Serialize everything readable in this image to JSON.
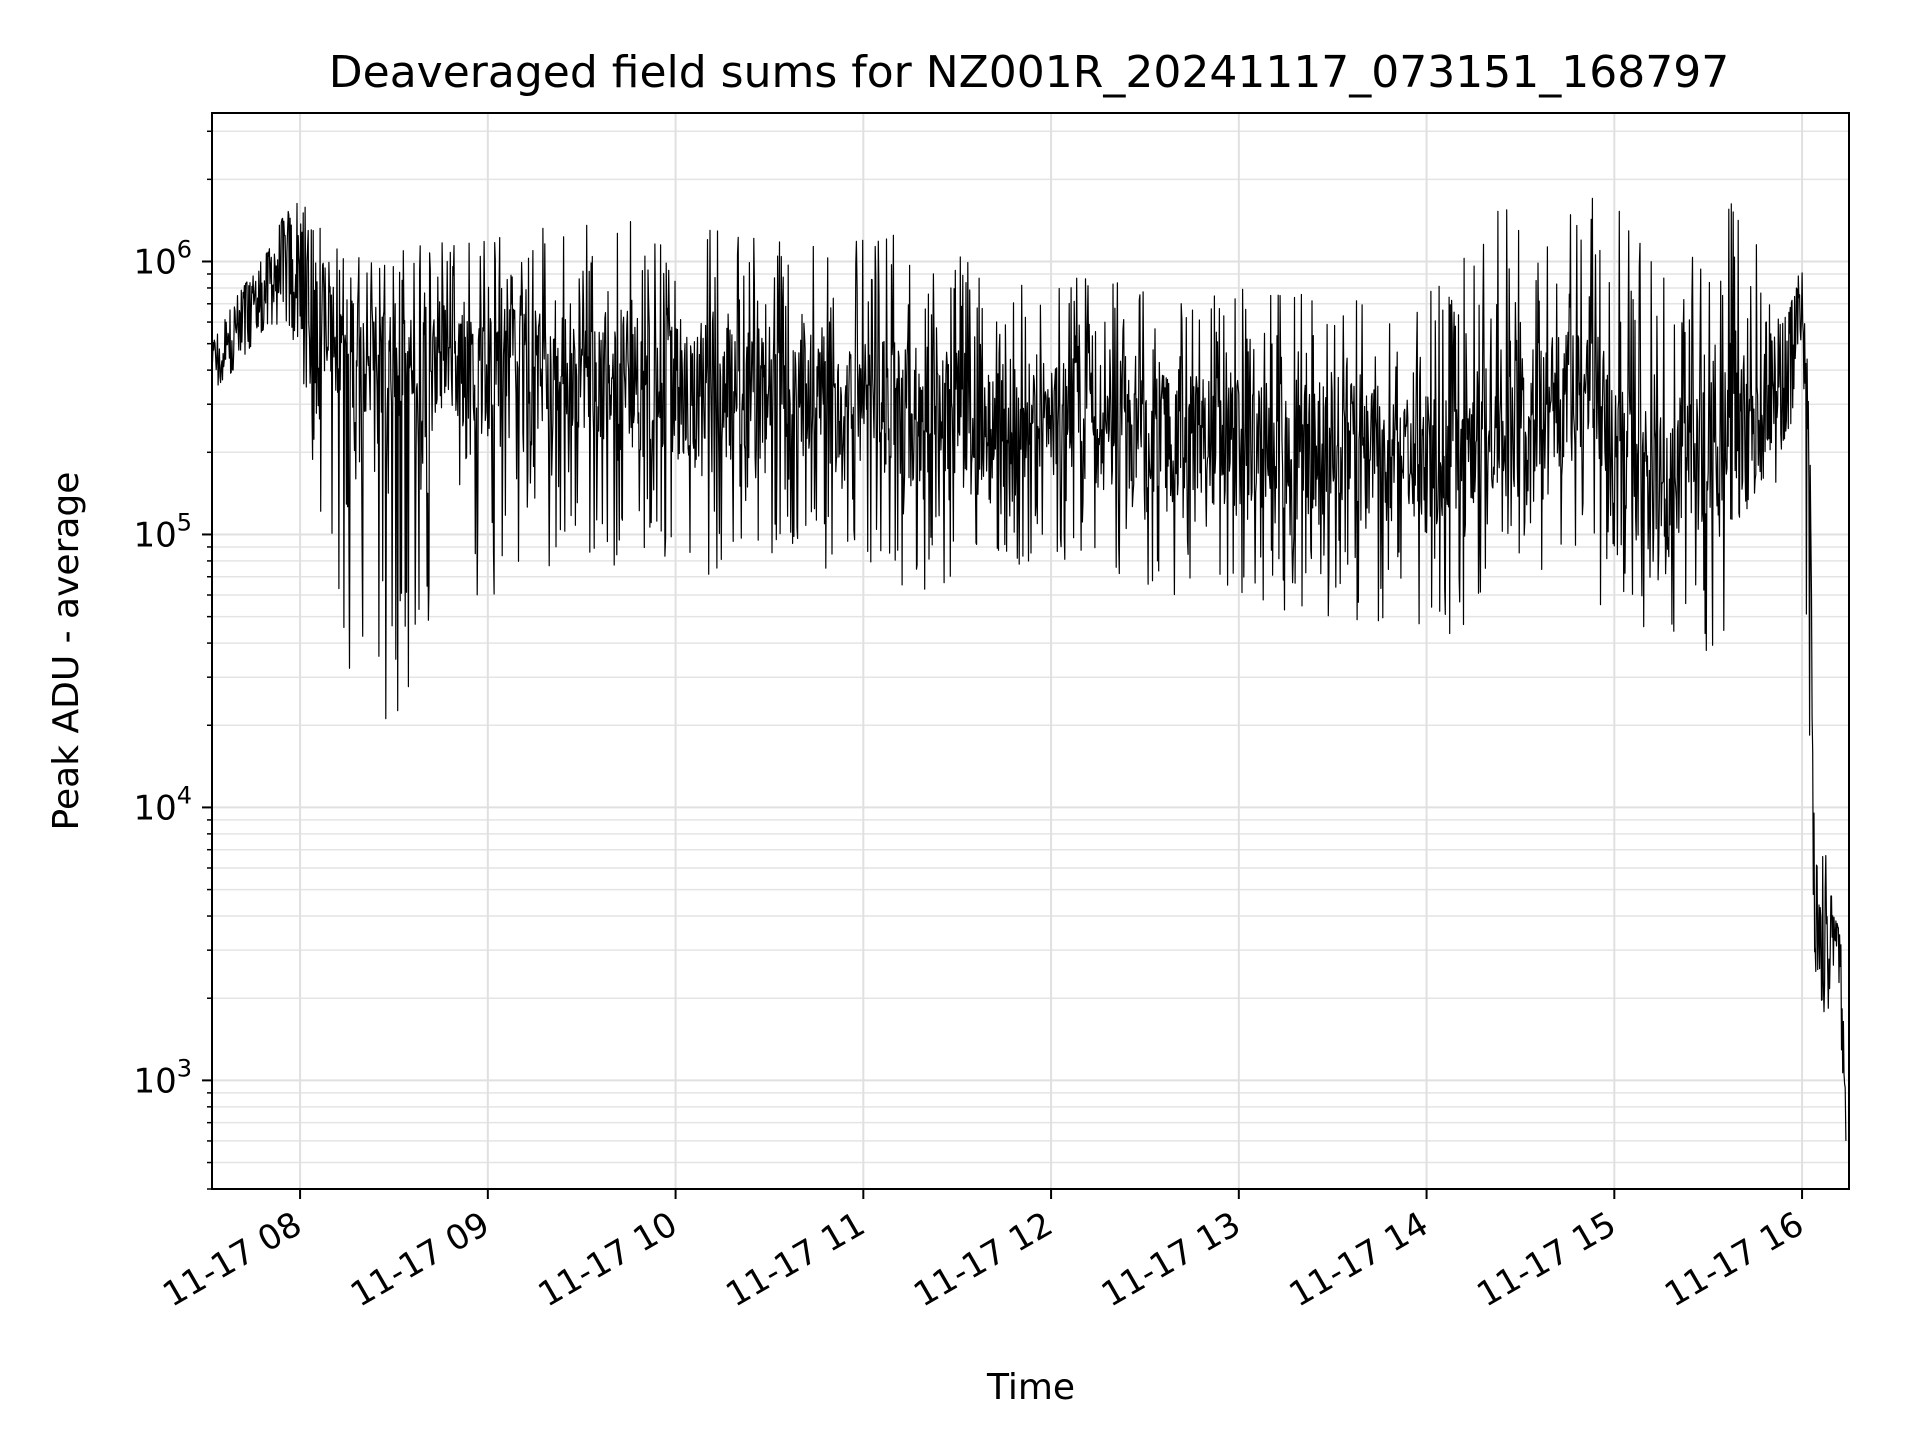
{
  "chart_data": {
    "type": "line",
    "title": "Deaveraged field sums for NZ001R_20241117_073151_168797",
    "xlabel": "Time",
    "ylabel": "Peak ADU - average",
    "yscale": "log",
    "ylim": [
      400,
      3500000
    ],
    "xlim": [
      "2024-11-17 07:31:51",
      "2024-11-17 16:15:00"
    ],
    "grid": true,
    "legend": "none",
    "line_color": "#000000",
    "x_ticks": [
      {
        "label": "11-17 08",
        "time": "2024-11-17 08:00"
      },
      {
        "label": "11-17 09",
        "time": "2024-11-17 09:00"
      },
      {
        "label": "11-17 10",
        "time": "2024-11-17 10:00"
      },
      {
        "label": "11-17 11",
        "time": "2024-11-17 11:00"
      },
      {
        "label": "11-17 12",
        "time": "2024-11-17 12:00"
      },
      {
        "label": "11-17 13",
        "time": "2024-11-17 13:00"
      },
      {
        "label": "11-17 14",
        "time": "2024-11-17 14:00"
      },
      {
        "label": "11-17 15",
        "time": "2024-11-17 15:00"
      },
      {
        "label": "11-17 16",
        "time": "2024-11-17 16:00"
      }
    ],
    "y_ticks": [
      {
        "base": "10",
        "exp": "3",
        "value": 1000
      },
      {
        "base": "10",
        "exp": "4",
        "value": 10000
      },
      {
        "base": "10",
        "exp": "5",
        "value": 100000
      },
      {
        "base": "10",
        "exp": "6",
        "value": 1000000
      }
    ],
    "series": [
      {
        "x": [
          "2024-11-17 07:32",
          "2024-11-17 07:40",
          "2024-11-17 07:50",
          "2024-11-17 07:55",
          "2024-11-17 08:00",
          "2024-11-17 08:05",
          "2024-11-17 08:10",
          "2024-11-17 08:15",
          "2024-11-17 08:20",
          "2024-11-17 08:25",
          "2024-11-17 08:30",
          "2024-11-17 08:35",
          "2024-11-17 08:40",
          "2024-11-17 08:45",
          "2024-11-17 08:50",
          "2024-11-17 08:55",
          "2024-11-17 09:00",
          "2024-11-17 09:10",
          "2024-11-17 09:20",
          "2024-11-17 09:30",
          "2024-11-17 09:40",
          "2024-11-17 09:50",
          "2024-11-17 10:00",
          "2024-11-17 10:10",
          "2024-11-17 10:20",
          "2024-11-17 10:30",
          "2024-11-17 10:40",
          "2024-11-17 10:50",
          "2024-11-17 11:00",
          "2024-11-17 11:10",
          "2024-11-17 11:15",
          "2024-11-17 11:20",
          "2024-11-17 11:30",
          "2024-11-17 11:40",
          "2024-11-17 11:50",
          "2024-11-17 12:00",
          "2024-11-17 12:10",
          "2024-11-17 12:20",
          "2024-11-17 12:30",
          "2024-11-17 12:40",
          "2024-11-17 12:50",
          "2024-11-17 13:00",
          "2024-11-17 13:10",
          "2024-11-17 13:20",
          "2024-11-17 13:30",
          "2024-11-17 13:40",
          "2024-11-17 13:50",
          "2024-11-17 14:00",
          "2024-11-17 14:10",
          "2024-11-17 14:20",
          "2024-11-17 14:30",
          "2024-11-17 14:40",
          "2024-11-17 14:50",
          "2024-11-17 14:55",
          "2024-11-17 15:00",
          "2024-11-17 15:10",
          "2024-11-17 15:20",
          "2024-11-17 15:30",
          "2024-11-17 15:35",
          "2024-11-17 15:40",
          "2024-11-17 15:50",
          "2024-11-17 15:55",
          "2024-11-17 16:00",
          "2024-11-17 16:02",
          "2024-11-17 16:04",
          "2024-11-17 16:06",
          "2024-11-17 16:08",
          "2024-11-17 16:10",
          "2024-11-17 16:12",
          "2024-11-17 16:14"
        ],
        "y": [
          400000,
          550000,
          800000,
          900000,
          900000,
          700000,
          600000,
          500000,
          450000,
          420000,
          400000,
          380000,
          400000,
          420000,
          450000,
          450000,
          400000,
          380000,
          400000,
          420000,
          380000,
          360000,
          350000,
          340000,
          330000,
          320000,
          300000,
          310000,
          300000,
          300000,
          270000,
          280000,
          270000,
          260000,
          250000,
          250000,
          250000,
          240000,
          230000,
          230000,
          220000,
          220000,
          210000,
          200000,
          200000,
          200000,
          190000,
          180000,
          200000,
          250000,
          280000,
          300000,
          350000,
          300000,
          220000,
          180000,
          170000,
          200000,
          230000,
          250000,
          280000,
          400000,
          750000,
          300000,
          4000,
          3000,
          2500,
          3500,
          3000,
          600
        ],
        "min_envelope": [
          320000,
          420000,
          600000,
          550000,
          400000,
          100000,
          40000,
          30000,
          25000,
          22000,
          20000,
          22000,
          30000,
          45000,
          50000,
          55000,
          55000,
          60000,
          70000,
          80000,
          75000,
          75000,
          70000,
          70000,
          75000,
          80000,
          75000,
          70000,
          80000,
          75000,
          45000,
          60000,
          70000,
          80000,
          75000,
          80000,
          70000,
          65000,
          60000,
          60000,
          60000,
          55000,
          55000,
          50000,
          50000,
          45000,
          45000,
          40000,
          40000,
          60000,
          80000,
          70000,
          60000,
          50000,
          50000,
          45000,
          40000,
          35000,
          40000,
          100000,
          130000,
          150000,
          400000,
          5000,
          2000,
          1600,
          1800,
          2000,
          1800,
          600
        ],
        "max_envelope": [
          500000,
          750000,
          1100000,
          1500000,
          1800000,
          1400000,
          1200000,
          1100000,
          1100000,
          1100000,
          1150000,
          1150000,
          1200000,
          1250000,
          1300000,
          1300000,
          1300000,
          1350000,
          1400000,
          1400000,
          1450000,
          1500000,
          1500000,
          1400000,
          1350000,
          1300000,
          1250000,
          1200000,
          1200000,
          1250000,
          1150000,
          1100000,
          1050000,
          1000000,
          950000,
          950000,
          900000,
          850000,
          800000,
          800000,
          780000,
          800000,
          780000,
          760000,
          760000,
          740000,
          720000,
          750000,
          1100000,
          1500000,
          1600000,
          1500000,
          2200000,
          1800000,
          1800000,
          1200000,
          900000,
          1200000,
          1900000,
          1600000,
          1000000,
          600000,
          1000000,
          950000,
          6000,
          6500,
          7000,
          4000,
          3600,
          2500
        ]
      }
    ]
  }
}
